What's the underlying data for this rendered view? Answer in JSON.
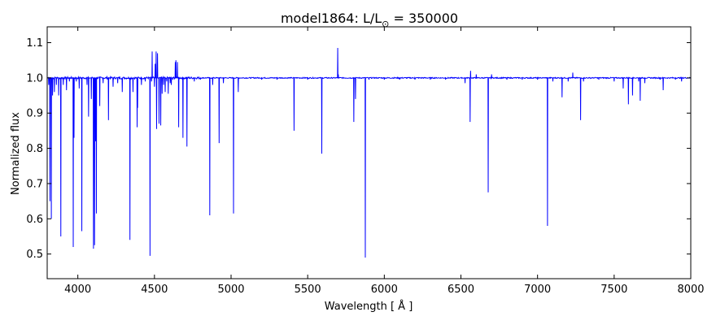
{
  "chart_data": {
    "type": "line",
    "title_prefix": "model1864: L/L",
    "title_sub": "⊙",
    "title_suffix": " = 350000",
    "xlabel": "Wavelength [ Å ]",
    "ylabel": "Normalized flux",
    "xlim": [
      3800,
      8000
    ],
    "ylim": [
      0.43,
      1.145
    ],
    "xticks": [
      4000,
      4500,
      5000,
      5500,
      6000,
      6500,
      7000,
      7500,
      8000
    ],
    "yticks": [
      0.5,
      0.6,
      0.7,
      0.8,
      0.9,
      1.0,
      1.1
    ],
    "grid": false,
    "line_color": "#0000ff",
    "continuum": 1.0,
    "features": [
      [
        3810,
        0.98
      ],
      [
        3818,
        0.65
      ],
      [
        3827,
        0.6
      ],
      [
        3835,
        0.95
      ],
      [
        3847,
        0.96
      ],
      [
        3860,
        0.98
      ],
      [
        3875,
        0.95
      ],
      [
        3889,
        0.55
      ],
      [
        3905,
        0.98
      ],
      [
        3926,
        0.965
      ],
      [
        3945,
        0.99
      ],
      [
        3970,
        0.52
      ],
      [
        3975,
        0.83
      ],
      [
        3990,
        0.99
      ],
      [
        4009,
        0.97
      ],
      [
        4026,
        0.565
      ],
      [
        4060,
        0.98
      ],
      [
        4070,
        0.89
      ],
      [
        4088,
        0.94
      ],
      [
        4102,
        0.515
      ],
      [
        4109,
        0.525
      ],
      [
        4116,
        0.82
      ],
      [
        4121,
        0.615
      ],
      [
        4143,
        0.92
      ],
      [
        4165,
        0.985
      ],
      [
        4200,
        0.88
      ],
      [
        4230,
        0.975
      ],
      [
        4260,
        0.985
      ],
      [
        4290,
        0.96
      ],
      [
        4340,
        0.54
      ],
      [
        4360,
        0.96
      ],
      [
        4387,
        0.86
      ],
      [
        4390,
        0.915
      ],
      [
        4415,
        0.98
      ],
      [
        4440,
        0.99
      ],
      [
        4471,
        0.495
      ],
      [
        4481,
        0.99
      ],
      [
        4485,
        1.075
      ],
      [
        4500,
        0.975
      ],
      [
        4505,
        1.04
      ],
      [
        4511,
        1.075
      ],
      [
        4514,
        0.855
      ],
      [
        4520,
        1.07
      ],
      [
        4530,
        0.87
      ],
      [
        4541,
        0.865
      ],
      [
        4550,
        0.955
      ],
      [
        4560,
        0.98
      ],
      [
        4570,
        0.96
      ],
      [
        4580,
        0.99
      ],
      [
        4590,
        0.955
      ],
      [
        4603,
        0.985
      ],
      [
        4610,
        0.98
      ],
      [
        4620,
        0.995
      ],
      [
        4636,
        1.045
      ],
      [
        4640,
        1.05
      ],
      [
        4650,
        1.045
      ],
      [
        4658,
        0.86
      ],
      [
        4686,
        0.83
      ],
      [
        4712,
        0.805
      ],
      [
        4760,
        0.99
      ],
      [
        4800,
        0.995
      ],
      [
        4861,
        0.61
      ],
      [
        4880,
        0.98
      ],
      [
        4922,
        0.815
      ],
      [
        4950,
        0.985
      ],
      [
        5016,
        0.615
      ],
      [
        5047,
        0.96
      ],
      [
        5200,
        0.995
      ],
      [
        5300,
        0.995
      ],
      [
        5411,
        0.85
      ],
      [
        5500,
        0.995
      ],
      [
        5592,
        0.785
      ],
      [
        5696,
        1.085
      ],
      [
        5700,
        1.01
      ],
      [
        5800,
        0.995
      ],
      [
        5801,
        0.875
      ],
      [
        5812,
        0.94
      ],
      [
        5876,
        0.49
      ],
      [
        5900,
        0.995
      ],
      [
        6000,
        0.995
      ],
      [
        6100,
        0.995
      ],
      [
        6200,
        0.995
      ],
      [
        6300,
        0.995
      ],
      [
        6400,
        0.995
      ],
      [
        6527,
        0.985
      ],
      [
        6560,
        0.875
      ],
      [
        6563,
        1.02
      ],
      [
        6600,
        1.01
      ],
      [
        6678,
        0.675
      ],
      [
        6700,
        1.01
      ],
      [
        6800,
        0.995
      ],
      [
        6900,
        0.995
      ],
      [
        7000,
        0.995
      ],
      [
        7065,
        0.58
      ],
      [
        7100,
        0.99
      ],
      [
        7160,
        0.945
      ],
      [
        7200,
        0.99
      ],
      [
        7230,
        1.015
      ],
      [
        7281,
        0.88
      ],
      [
        7300,
        0.99
      ],
      [
        7400,
        0.995
      ],
      [
        7500,
        0.99
      ],
      [
        7559,
        0.97
      ],
      [
        7593,
        0.925
      ],
      [
        7620,
        0.95
      ],
      [
        7660,
        0.99
      ],
      [
        7670,
        0.935
      ],
      [
        7700,
        0.985
      ],
      [
        7800,
        0.995
      ],
      [
        7820,
        0.965
      ],
      [
        7900,
        0.995
      ],
      [
        7940,
        0.99
      ]
    ]
  }
}
